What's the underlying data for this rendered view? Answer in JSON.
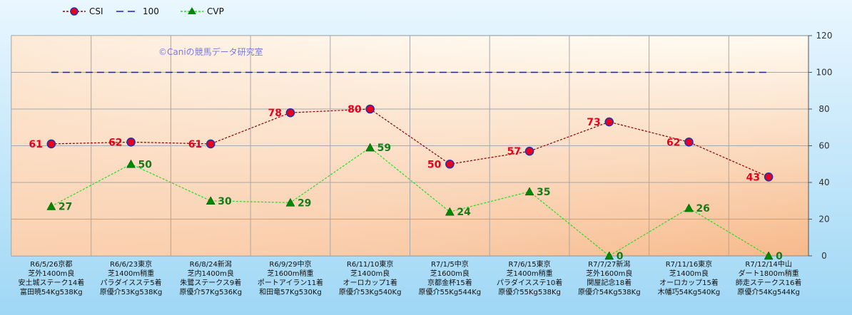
{
  "chart_data": {
    "type": "line",
    "watermark": "©Caniの競馬データ研究室",
    "ylim": [
      0,
      120
    ],
    "yticks": [
      "0",
      "20",
      "40",
      "60",
      "80",
      "100",
      "120"
    ],
    "grid": true,
    "legend_placement": "top-left",
    "categories": [
      [
        "R6/5/26京都",
        "芝外1400m良",
        "安土城ステーク14着",
        "富田暁54Kg538Kg"
      ],
      [
        "R6/6/23東京",
        "芝1400m稍重",
        "パラダイスステ5着",
        "原優介53Kg538Kg"
      ],
      [
        "R6/8/24新潟",
        "芝内1400m良",
        "朱鷺ステークス9着",
        "原優介57Kg536Kg"
      ],
      [
        "R6/9/29中京",
        "芝1600m稍重",
        "ポートアイラン11着",
        "和田竜57Kg530Kg"
      ],
      [
        "R6/11/10東京",
        "芝1400m良",
        "オーロカップ1着",
        "原優介53Kg540Kg"
      ],
      [
        "R7/1/5中京",
        "芝1600m良",
        "京都金杯15着",
        "原優介55Kg544Kg"
      ],
      [
        "R7/6/15東京",
        "芝1400m稍重",
        "パラダイスステ10着",
        "原優介55Kg538Kg"
      ],
      [
        "R7/7/27新潟",
        "芝外1600m良",
        "関屋記念18着",
        "原優介54Kg538Kg"
      ],
      [
        "R7/11/16東京",
        "芝1400m良",
        "オーロカップ15着",
        "木幡巧54Kg540Kg"
      ],
      [
        "R7/12/14中山",
        "ダート1800m稍重",
        "師走ステークス16着",
        "原優介54Kg544Kg"
      ]
    ],
    "series": [
      {
        "name": "CSI",
        "values": [
          61,
          62,
          61,
          78,
          80,
          50,
          57,
          73,
          62,
          43
        ],
        "color": "#8b0000",
        "marker": "circle",
        "marker_color": "#e8001c",
        "label_color": "#e8001c"
      },
      {
        "name": "100",
        "values": [
          100,
          100,
          100,
          100,
          100,
          100,
          100,
          100,
          100,
          100
        ],
        "color": "#1a1acc",
        "marker": "none"
      },
      {
        "name": "CVP",
        "values": [
          27,
          50,
          30,
          29,
          59,
          24,
          35,
          0,
          26,
          0
        ],
        "color": "#22dd22",
        "marker": "triangle",
        "marker_color": "#008800",
        "label_color": "#1a7a1a"
      }
    ]
  }
}
